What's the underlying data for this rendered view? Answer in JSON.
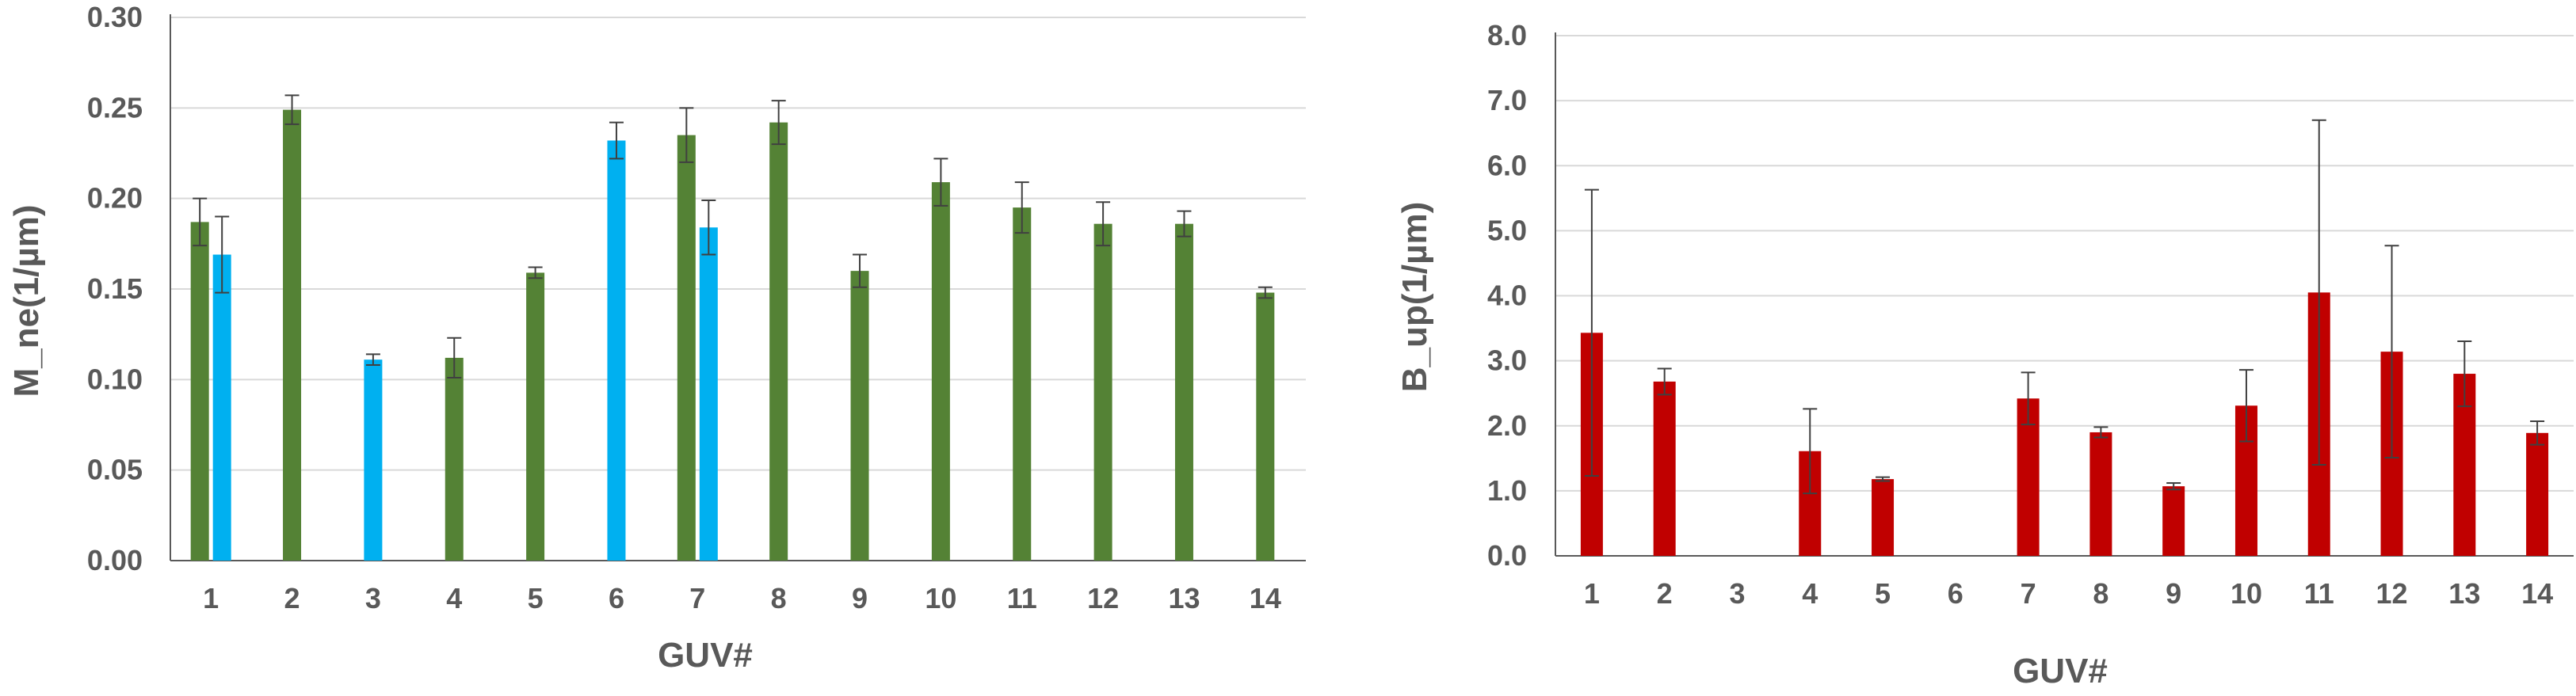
{
  "colors": {
    "green": "#548235",
    "blue": "#00B0F0",
    "red": "#C00000",
    "grid": "#D9D9D9",
    "axis": "#595959",
    "errorbar": "#404040"
  },
  "chart_data": [
    {
      "type": "bar",
      "xlabel": "GUV#",
      "ylabel": "M_ne(1/µm)",
      "ylim": [
        0,
        0.3
      ],
      "yticks": [
        "0.00",
        "0.05",
        "0.10",
        "0.15",
        "0.20",
        "0.25",
        "0.30"
      ],
      "categories": [
        "1",
        "2",
        "3",
        "4",
        "5",
        "6",
        "7",
        "8",
        "9",
        "10",
        "11",
        "12",
        "13",
        "14"
      ],
      "grid": true,
      "series": [
        {
          "color": "#548235",
          "values": [
            0.187,
            0.249,
            null,
            0.112,
            0.159,
            null,
            0.235,
            0.242,
            0.16,
            0.209,
            0.195,
            0.186,
            0.186,
            0.148
          ],
          "errors": [
            0.013,
            0.008,
            null,
            0.011,
            0.003,
            null,
            0.015,
            0.012,
            0.009,
            0.013,
            0.014,
            0.012,
            0.007,
            0.003
          ]
        },
        {
          "color": "#00B0F0",
          "values": [
            0.169,
            null,
            0.111,
            null,
            null,
            0.232,
            0.184,
            null,
            null,
            null,
            null,
            null,
            null,
            null
          ],
          "errors": [
            0.021,
            null,
            0.003,
            null,
            null,
            0.01,
            0.015,
            null,
            null,
            null,
            null,
            null,
            null,
            null
          ]
        }
      ]
    },
    {
      "type": "bar",
      "xlabel": "GUV#",
      "ylabel": "B_up(1/µm)",
      "ylim": [
        0,
        8.0
      ],
      "yticks": [
        "0.0",
        "1.0",
        "2.0",
        "3.0",
        "4.0",
        "5.0",
        "6.0",
        "7.0",
        "8.0"
      ],
      "categories": [
        "1",
        "2",
        "3",
        "4",
        "5",
        "6",
        "7",
        "8",
        "9",
        "10",
        "11",
        "12",
        "13",
        "14"
      ],
      "grid": true,
      "series": [
        {
          "color": "#C00000",
          "values": [
            3.43,
            2.68,
            null,
            1.61,
            1.18,
            null,
            2.42,
            1.9,
            1.07,
            2.31,
            4.05,
            3.14,
            2.8,
            1.89
          ],
          "errors": [
            2.2,
            0.2,
            null,
            0.65,
            0.03,
            null,
            0.4,
            0.08,
            0.05,
            0.55,
            2.65,
            1.63,
            0.5,
            0.18
          ]
        }
      ]
    }
  ]
}
